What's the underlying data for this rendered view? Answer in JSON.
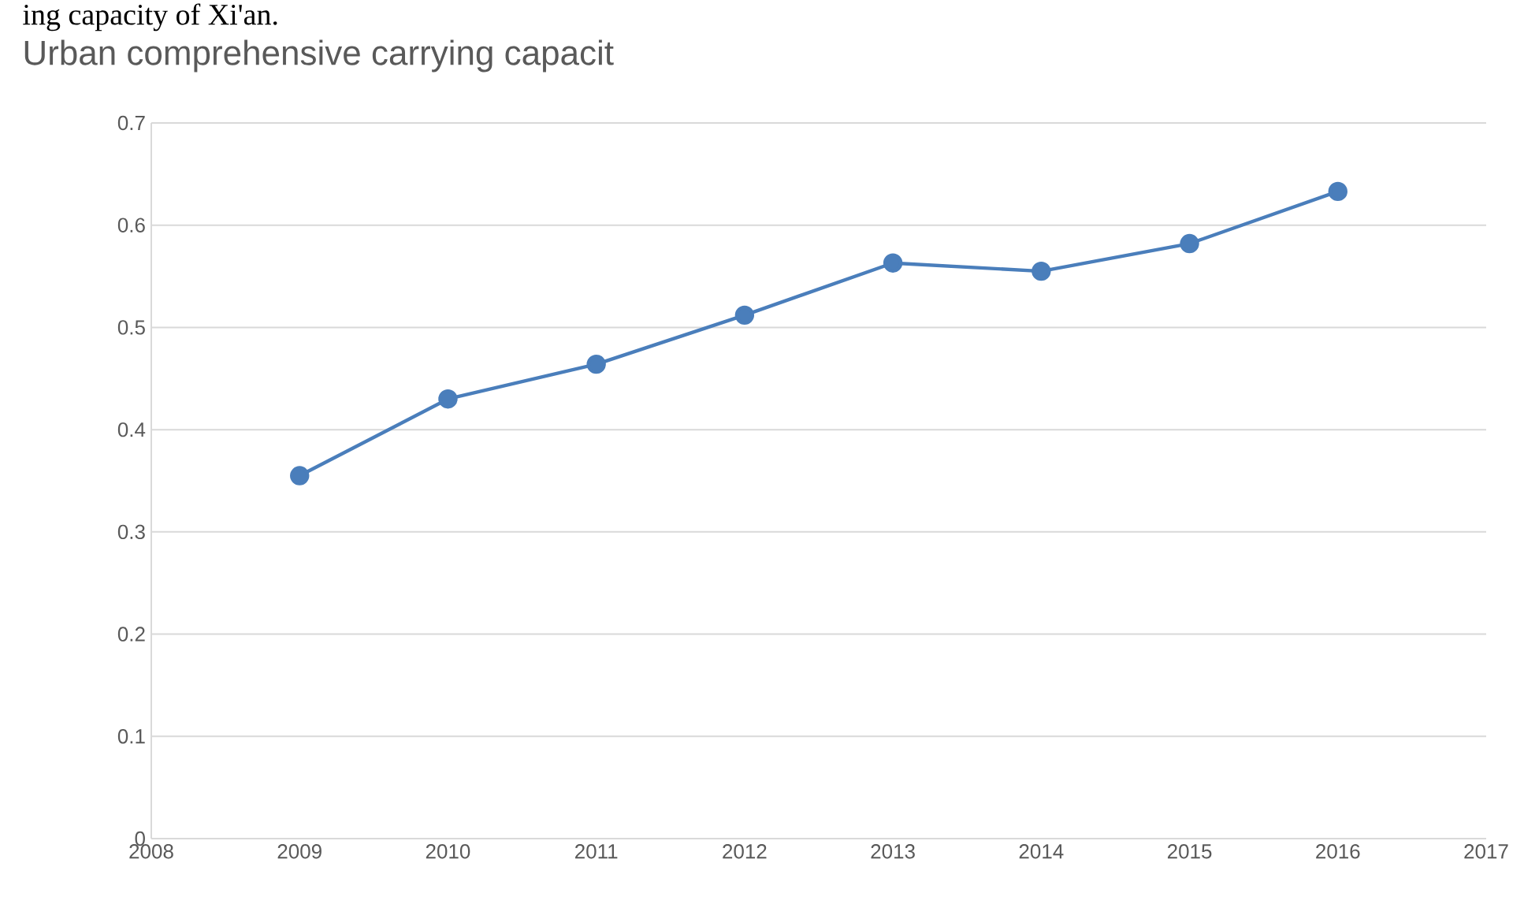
{
  "chart_data": {
    "type": "line",
    "title": "Urban comprehensive carrying capacit",
    "annotations": [
      "ing capacity of Xi'an."
    ],
    "x": [
      2009,
      2010,
      2011,
      2012,
      2013,
      2014,
      2015,
      2016
    ],
    "series": [
      {
        "color": "#4a7ebb",
        "values": [
          0.355,
          0.43,
          0.464,
          0.512,
          0.563,
          0.555,
          0.582,
          0.633
        ]
      }
    ],
    "xlim": [
      2008,
      2017
    ],
    "xticks": [
      2008,
      2009,
      2010,
      2011,
      2012,
      2013,
      2014,
      2015,
      2016,
      2017
    ],
    "ylim": [
      0,
      0.7
    ],
    "yticks": [
      0,
      0.1,
      0.2,
      0.3,
      0.4,
      0.5,
      0.6,
      0.7
    ],
    "grid": "y",
    "marker": "circle",
    "line_style": "solid"
  }
}
